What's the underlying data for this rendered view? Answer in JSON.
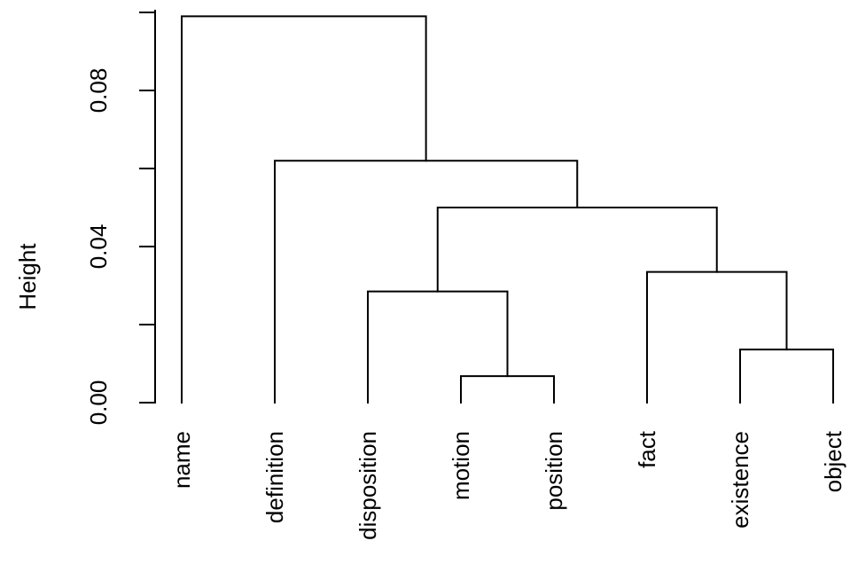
{
  "chart_data": {
    "type": "dendrogram",
    "title": "",
    "xlabel": "",
    "ylabel": "Height",
    "ylim": [
      0,
      0.1
    ],
    "y_ticks": [
      0.0,
      0.02,
      0.04,
      0.06,
      0.08,
      0.1
    ],
    "y_tick_labels": [
      "0.00",
      "",
      "0.04",
      "",
      "0.08",
      ""
    ],
    "leaves": [
      "name",
      "definition",
      "disposition",
      "motion",
      "position",
      "fact",
      "existence",
      "object"
    ],
    "merges": [
      {
        "left": "motion",
        "right": "position",
        "height": 0.0068
      },
      {
        "left": "existence",
        "right": "object",
        "height": 0.0136
      },
      {
        "left": "disposition",
        "right": "motion+position",
        "height": 0.0285
      },
      {
        "left": "fact",
        "right": "existence+object",
        "height": 0.0335
      },
      {
        "left": "disposition+motion+position",
        "right": "fact+existence+object",
        "height": 0.05
      },
      {
        "left": "definition",
        "right": "disposition+motion+position+fact+existence+object",
        "height": 0.062
      },
      {
        "left": "name",
        "right": "definition+disposition+motion+position+fact+existence+object",
        "height": 0.099
      }
    ],
    "grid": false,
    "legend": "none"
  }
}
